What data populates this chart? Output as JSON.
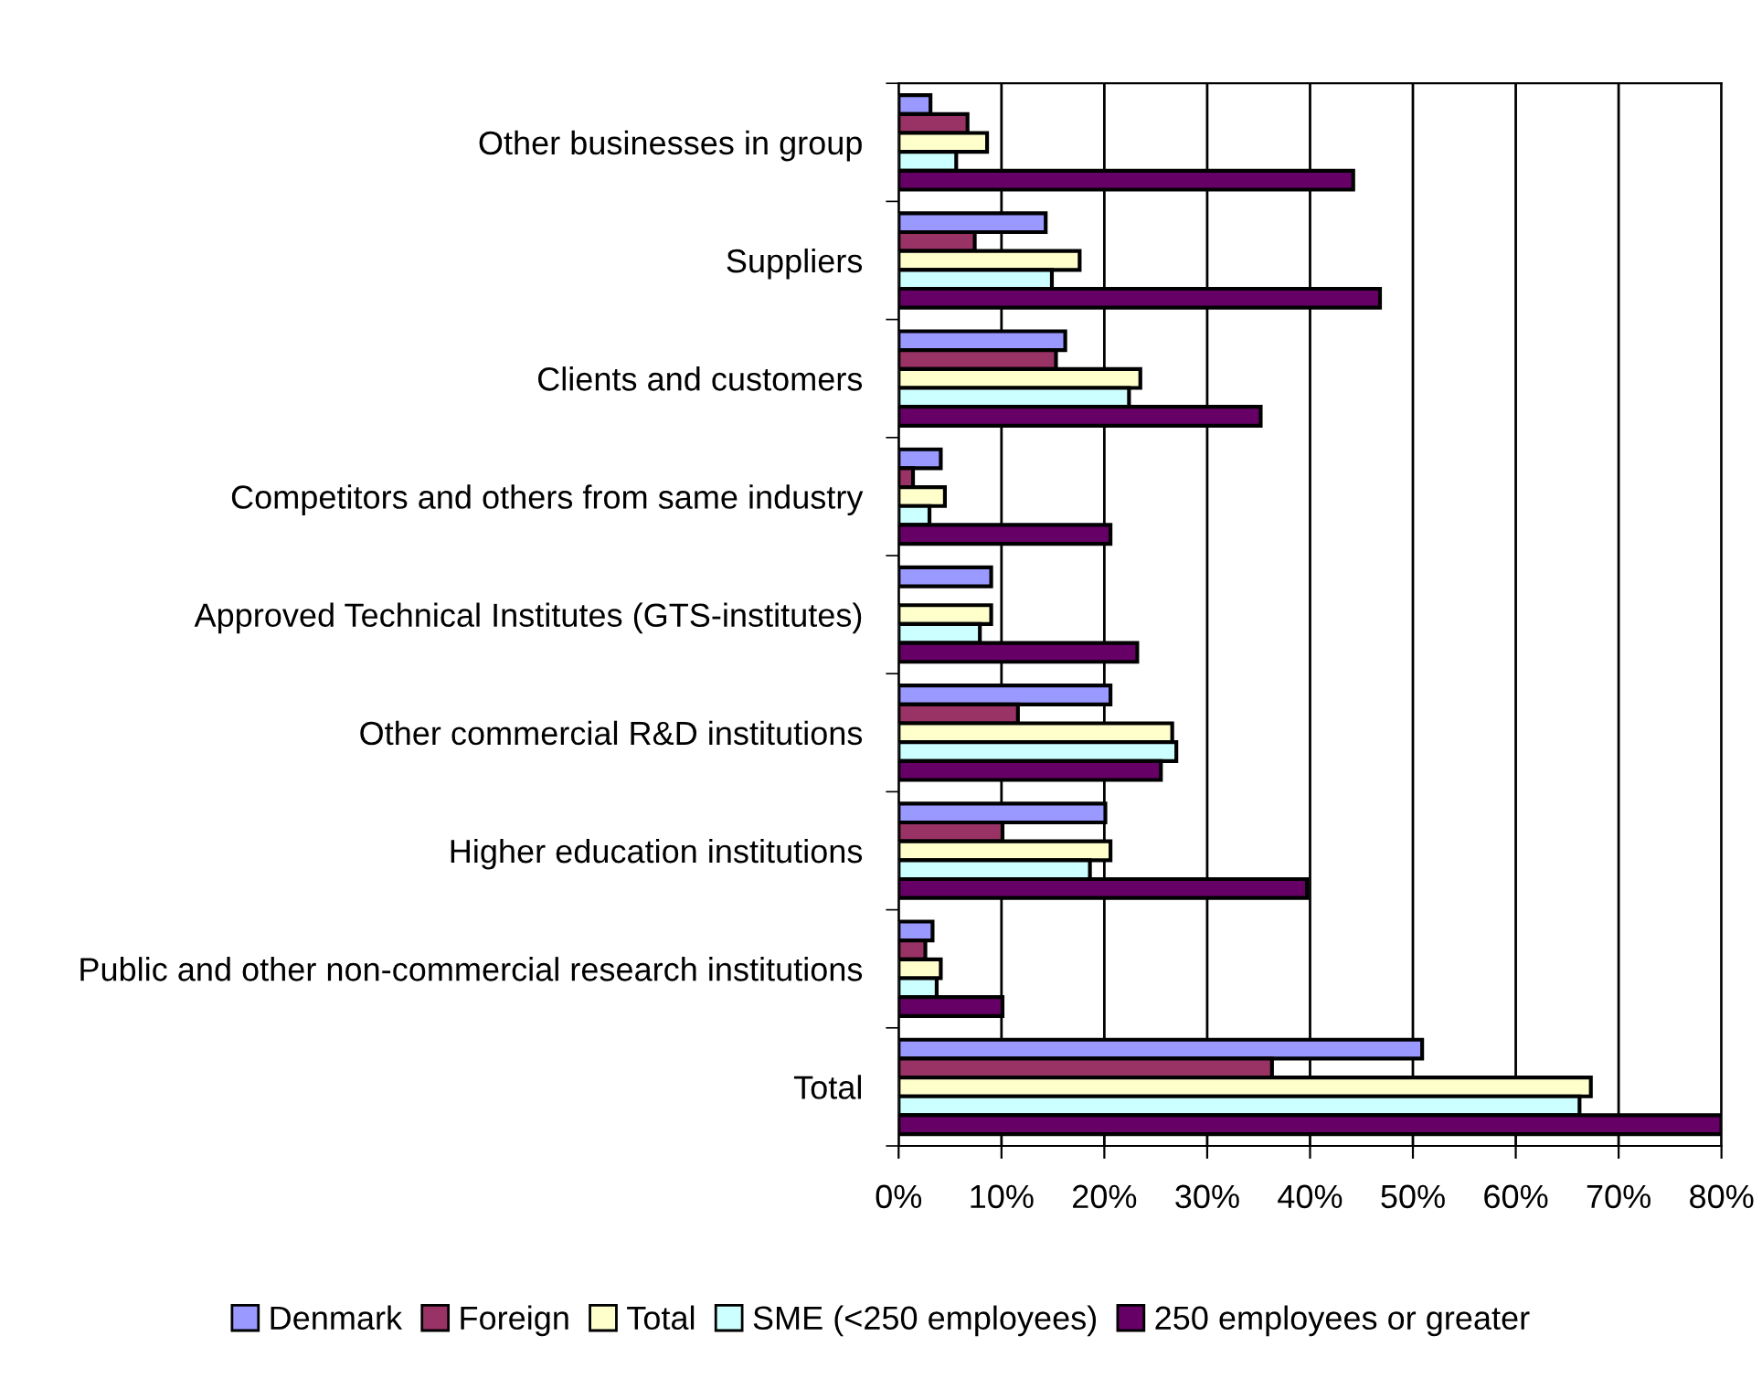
{
  "chart_data": {
    "type": "bar",
    "orientation": "horizontal",
    "categories": [
      "Other businesses in group",
      "Suppliers",
      "Clients and customers",
      "Competitors and others from same industry",
      "Approved Technical Institutes (GTS-institutes)",
      "Other commercial R&D institutions",
      "Higher education institutions",
      "Public and other non-commercial research institutions",
      "Total"
    ],
    "series": [
      {
        "name": "Denmark",
        "color": "#9999ff",
        "values": [
          3.1,
          14.3,
          16.2,
          4.1,
          9.0,
          20.6,
          20.1,
          3.3,
          50.9
        ]
      },
      {
        "name": "Foreign",
        "color": "#993366",
        "values": [
          6.7,
          7.4,
          15.3,
          1.4,
          null,
          11.6,
          10.1,
          2.6,
          36.3
        ]
      },
      {
        "name": "Total",
        "color": "#ffffcc",
        "values": [
          8.6,
          17.6,
          23.5,
          4.5,
          9.0,
          26.6,
          20.6,
          4.1,
          67.3
        ]
      },
      {
        "name": "SME (<250 employees)",
        "color": "#ccffff",
        "values": [
          5.6,
          14.9,
          22.4,
          3.0,
          7.9,
          27.0,
          18.6,
          3.7,
          66.2
        ]
      },
      {
        "name": "250 employees or greater",
        "color": "#660066",
        "values": [
          44.2,
          46.8,
          35.2,
          20.6,
          23.2,
          25.5,
          39.7,
          10.1,
          80
        ]
      }
    ],
    "xlim": [
      0,
      80
    ],
    "xticks": [
      {
        "value": 0,
        "label": "0%"
      },
      {
        "value": 10,
        "label": "10%"
      },
      {
        "value": 20,
        "label": "20%"
      },
      {
        "value": 30,
        "label": "30%"
      },
      {
        "value": 40,
        "label": "40%"
      },
      {
        "value": 50,
        "label": "50%"
      },
      {
        "value": 60,
        "label": "60%"
      },
      {
        "value": 70,
        "label": "70%"
      },
      {
        "value": 80,
        "label": "80%"
      }
    ],
    "grid": "x",
    "legend": "bottom"
  }
}
